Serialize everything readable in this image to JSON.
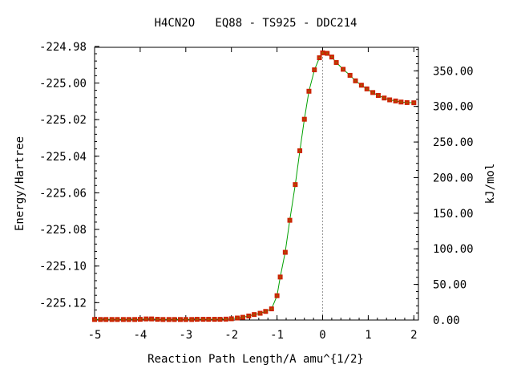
{
  "chart_data": {
    "type": "line",
    "title": "H4CN2O   EQ88 - TS925 - DDC214",
    "xlabel": "Reaction Path Length/A amu^{1/2}",
    "ylabel": "Energy/Hartree",
    "ylabel_right": "kJ/mol",
    "xlim": [
      -5.0,
      2.1
    ],
    "ylim": [
      -225.1295,
      -224.9805
    ],
    "ylim_right": [
      0,
      383
    ],
    "x_ticks": [
      -5,
      -4,
      -3,
      -2,
      -1,
      0,
      1,
      2
    ],
    "x_tick_labels": [
      "-5",
      "-4",
      "-3",
      "-2",
      "-1",
      "0",
      "1",
      "2"
    ],
    "y_ticks": [
      -224.98,
      -225.0,
      -225.02,
      -225.04,
      -225.06,
      -225.08,
      -225.1,
      -225.12
    ],
    "y_tick_labels": [
      "-224.98",
      "-225.00",
      "-225.02",
      "-225.04",
      "-225.06",
      "-225.08",
      "-225.10",
      "-225.12"
    ],
    "y2_ticks": [
      0,
      50,
      100,
      150,
      200,
      250,
      300,
      350
    ],
    "y2_tick_labels": [
      "0.00",
      "50.00",
      "100.00",
      "150.00",
      "200.00",
      "250.00",
      "300.00",
      "350.00"
    ],
    "ts_marker_x": 0.0,
    "grid": false,
    "colors": {
      "line": "#00a000",
      "marker": "#cc2200",
      "marker_center": "#996600",
      "ts_line": "#999999"
    },
    "series": [
      {
        "x": [
          -5.0,
          -4.87,
          -4.75,
          -4.62,
          -4.5,
          -4.37,
          -4.25,
          -4.12,
          -4.0,
          -3.87,
          -3.75,
          -3.62,
          -3.5,
          -3.37,
          -3.25,
          -3.12,
          -3.0,
          -2.87,
          -2.75,
          -2.62,
          -2.5,
          -2.37,
          -2.25,
          -2.12,
          -2.0,
          -1.87,
          -1.75,
          -1.62,
          -1.5,
          -1.37,
          -1.25,
          -1.12,
          -1.0,
          -0.93,
          -0.82,
          -0.72,
          -0.6,
          -0.5,
          -0.4,
          -0.3,
          -0.18,
          -0.07,
          0.0,
          0.1,
          0.2,
          0.3,
          0.45,
          0.6,
          0.72,
          0.85,
          0.97,
          1.1,
          1.22,
          1.35,
          1.47,
          1.6,
          1.72,
          1.85,
          2.0
        ],
        "y": [
          -225.1292,
          -225.1292,
          -225.1292,
          -225.1292,
          -225.1292,
          -225.1292,
          -225.1292,
          -225.1292,
          -225.1291,
          -225.1289,
          -225.1289,
          -225.1291,
          -225.1292,
          -225.1292,
          -225.1292,
          -225.1292,
          -225.1292,
          -225.1292,
          -225.1291,
          -225.1291,
          -225.1291,
          -225.1291,
          -225.1291,
          -225.129,
          -225.1288,
          -225.1284,
          -225.128,
          -225.1273,
          -225.1265,
          -225.1258,
          -225.1248,
          -225.1234,
          -225.1162,
          -225.106,
          -225.0925,
          -225.075,
          -225.0555,
          -225.037,
          -225.0198,
          -225.0045,
          -224.9928,
          -224.9862,
          -224.9835,
          -224.9838,
          -224.9858,
          -224.9888,
          -224.9925,
          -224.9958,
          -224.9988,
          -225.0012,
          -225.0032,
          -225.0052,
          -225.0068,
          -225.0082,
          -225.0092,
          -225.0098,
          -225.0104,
          -225.0107,
          -225.0108
        ]
      }
    ]
  }
}
